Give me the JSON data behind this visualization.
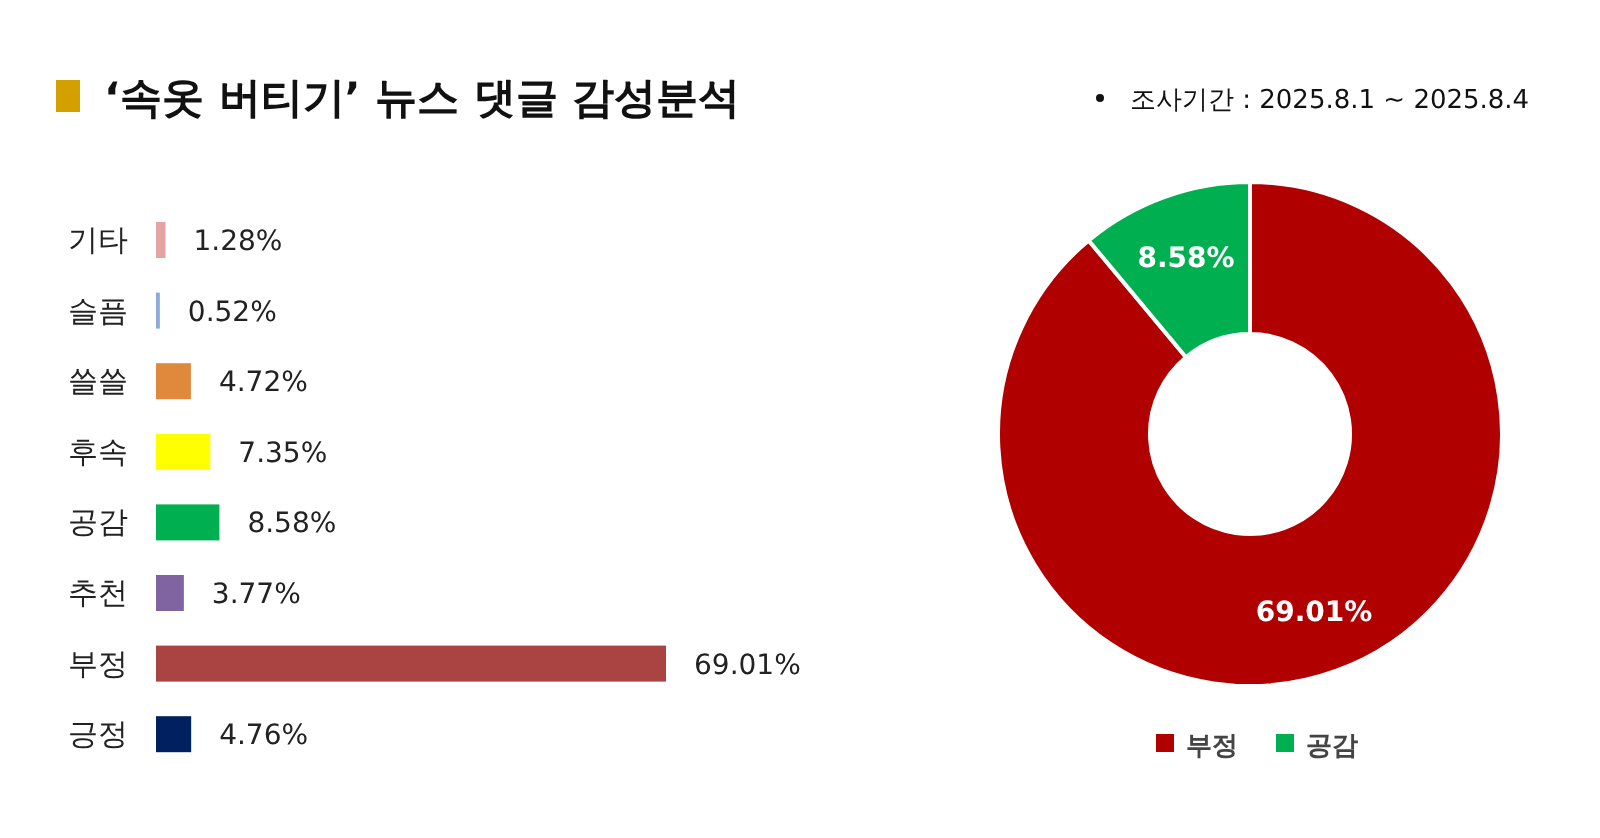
{
  "chart_data": [
    {
      "type": "bar",
      "orientation": "horizontal",
      "title": "‘속옷 버티기’ 뉴스 댓글 감성분석",
      "categories": [
        "기타",
        "슬픔",
        "쓸쓸",
        "후속",
        "공감",
        "추천",
        "부정",
        "긍정"
      ],
      "values": [
        1.28,
        0.52,
        4.72,
        7.35,
        8.58,
        3.77,
        69.01,
        4.76
      ],
      "value_labels": [
        "1.28%",
        "0.52%",
        "4.72%",
        "7.35%",
        "8.58%",
        "3.77%",
        "69.01%",
        "4.76%"
      ],
      "colors": [
        "#e6a3a3",
        "#8eaadb",
        "#e0893c",
        "#ffff00",
        "#00b050",
        "#8064a2",
        "#a94442",
        "#002060"
      ]
    },
    {
      "type": "donut",
      "categories": [
        "부정",
        "공감"
      ],
      "values": [
        69.01,
        8.58
      ],
      "value_labels": [
        "69.01%",
        "8.58%"
      ],
      "colors": [
        "#b00000",
        "#00b050"
      ],
      "legend": "bottom",
      "annotations": [
        "조사기간 : 2025.8.1 ~ 2025.8.4"
      ]
    }
  ]
}
